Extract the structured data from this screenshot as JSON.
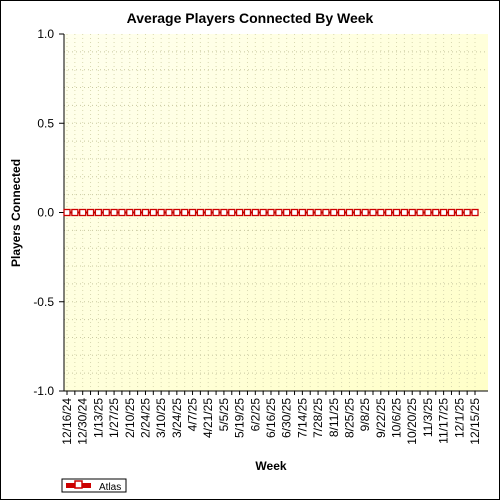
{
  "chart_data": {
    "type": "line",
    "title": "Average Players Connected By Week",
    "xlabel": "Week",
    "ylabel": "Players Connected",
    "ylim": [
      -1.0,
      1.0
    ],
    "yticks": [
      "1.0",
      "0.5",
      "0.0",
      "-0.5",
      "-1.0"
    ],
    "grid": true,
    "legend_position": "bottom-left",
    "x_tick_labels": [
      "12/16/24",
      "12/30/24",
      "1/13/25",
      "1/27/25",
      "2/10/25",
      "2/24/25",
      "3/10/25",
      "3/24/25",
      "4/7/25",
      "4/21/25",
      "5/5/25",
      "5/19/25",
      "6/2/25",
      "6/16/25",
      "6/30/25",
      "7/14/25",
      "7/28/25",
      "8/11/25",
      "8/25/25",
      "9/8/25",
      "9/22/25",
      "10/6/25",
      "10/20/25",
      "11/3/25",
      "11/17/25",
      "12/1/25",
      "12/15/25"
    ],
    "x": [
      "12/16/24",
      "12/23/24",
      "12/30/24",
      "1/6/25",
      "1/13/25",
      "1/20/25",
      "1/27/25",
      "2/3/25",
      "2/10/25",
      "2/17/25",
      "2/24/25",
      "3/3/25",
      "3/10/25",
      "3/17/25",
      "3/24/25",
      "3/31/25",
      "4/7/25",
      "4/14/25",
      "4/21/25",
      "4/28/25",
      "5/5/25",
      "5/12/25",
      "5/19/25",
      "5/26/25",
      "6/2/25",
      "6/9/25",
      "6/16/25",
      "6/23/25",
      "6/30/25",
      "7/7/25",
      "7/14/25",
      "7/21/25",
      "7/28/25",
      "8/4/25",
      "8/11/25",
      "8/18/25",
      "8/25/25",
      "9/1/25",
      "9/8/25",
      "9/15/25",
      "9/22/25",
      "9/29/25",
      "10/6/25",
      "10/13/25",
      "10/20/25",
      "10/27/25",
      "11/3/25",
      "11/10/25",
      "11/17/25",
      "11/24/25",
      "12/1/25",
      "12/8/25",
      "12/15/25"
    ],
    "series": [
      {
        "name": "Atlas",
        "color": "#cc0000",
        "values": [
          0,
          0,
          0,
          0,
          0,
          0,
          0,
          0,
          0,
          0,
          0,
          0,
          0,
          0,
          0,
          0,
          0,
          0,
          0,
          0,
          0,
          0,
          0,
          0,
          0,
          0,
          0,
          0,
          0,
          0,
          0,
          0,
          0,
          0,
          0,
          0,
          0,
          0,
          0,
          0,
          0,
          0,
          0,
          0,
          0,
          0,
          0,
          0,
          0,
          0,
          0,
          0,
          0
        ]
      }
    ],
    "plot_background": "#ffffe0"
  }
}
